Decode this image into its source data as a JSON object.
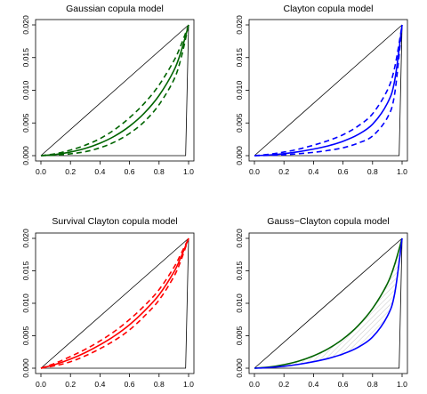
{
  "chart_data": [
    {
      "type": "line",
      "title": "Gaussian copula model",
      "xlabel": "",
      "ylabel": "",
      "xlim": [
        0,
        1
      ],
      "ylim": [
        0,
        0.02
      ],
      "x_ticks": [
        "0.0",
        "0.2",
        "0.4",
        "0.6",
        "0.8",
        "1.0"
      ],
      "y_ticks": [
        "0.000",
        "0.005",
        "0.010",
        "0.015",
        "0.020"
      ],
      "grid": false,
      "x": [
        0,
        0.1,
        0.2,
        0.3,
        0.4,
        0.5,
        0.6,
        0.7,
        0.8,
        0.9,
        0.95,
        1.0
      ],
      "series": [
        {
          "color": "#000000",
          "style": "solid",
          "role": "diagonal",
          "x": [
            0,
            1
          ],
          "values": [
            0,
            0.02
          ]
        },
        {
          "color": "#000000",
          "style": "solid",
          "role": "lower-bound",
          "x": [
            0,
            0.98,
            1
          ],
          "values": [
            0,
            0,
            0.02
          ]
        },
        {
          "color": "#006400",
          "style": "solid",
          "values": [
            0,
            0.00018,
            0.00055,
            0.0011,
            0.0019,
            0.003,
            0.0045,
            0.0065,
            0.0092,
            0.013,
            0.016,
            0.02
          ]
        },
        {
          "color": "#006400",
          "style": "dashed",
          "values": [
            0,
            0.0003,
            0.00085,
            0.0016,
            0.0026,
            0.004,
            0.0058,
            0.008,
            0.0108,
            0.0145,
            0.017,
            0.02
          ]
        },
        {
          "color": "#006400",
          "style": "dashed",
          "values": [
            0,
            8e-05,
            0.00028,
            0.0006,
            0.0012,
            0.0021,
            0.0034,
            0.0052,
            0.0078,
            0.0116,
            0.015,
            0.02
          ]
        }
      ]
    },
    {
      "type": "line",
      "title": "Clayton copula model",
      "xlabel": "",
      "ylabel": "",
      "xlim": [
        0,
        1
      ],
      "ylim": [
        0,
        0.02
      ],
      "x_ticks": [
        "0.0",
        "0.2",
        "0.4",
        "0.6",
        "0.8",
        "1.0"
      ],
      "y_ticks": [
        "0.000",
        "0.005",
        "0.010",
        "0.015",
        "0.020"
      ],
      "grid": false,
      "x": [
        0,
        0.1,
        0.2,
        0.3,
        0.4,
        0.5,
        0.6,
        0.7,
        0.8,
        0.9,
        0.95,
        1.0
      ],
      "series": [
        {
          "color": "#000000",
          "style": "solid",
          "role": "diagonal",
          "x": [
            0,
            1
          ],
          "values": [
            0,
            0.02
          ]
        },
        {
          "color": "#000000",
          "style": "solid",
          "role": "lower-bound",
          "x": [
            0,
            0.98,
            1
          ],
          "values": [
            0,
            0,
            0.02
          ]
        },
        {
          "color": "#0000ff",
          "style": "solid",
          "values": [
            0,
            0.0001,
            0.0003,
            0.0006,
            0.001,
            0.0015,
            0.0022,
            0.0032,
            0.0048,
            0.008,
            0.0115,
            0.02
          ]
        },
        {
          "color": "#0000ff",
          "style": "dashed",
          "values": [
            0,
            0.0002,
            0.00055,
            0.001,
            0.0016,
            0.0023,
            0.0032,
            0.0045,
            0.0064,
            0.01,
            0.0135,
            0.02
          ]
        },
        {
          "color": "#0000ff",
          "style": "dashed",
          "values": [
            0,
            4e-05,
            0.00012,
            0.0003,
            0.0005,
            0.0008,
            0.0012,
            0.0019,
            0.003,
            0.0058,
            0.0095,
            0.02
          ]
        }
      ]
    },
    {
      "type": "line",
      "title": "Survival Clayton copula model",
      "xlabel": "",
      "ylabel": "",
      "xlim": [
        0,
        1
      ],
      "ylim": [
        0,
        0.02
      ],
      "x_ticks": [
        "0.0",
        "0.2",
        "0.4",
        "0.6",
        "0.8",
        "1.0"
      ],
      "y_ticks": [
        "0.000",
        "0.005",
        "0.010",
        "0.015",
        "0.020"
      ],
      "grid": false,
      "x": [
        0,
        0.1,
        0.2,
        0.3,
        0.4,
        0.5,
        0.6,
        0.7,
        0.8,
        0.9,
        0.95,
        1.0
      ],
      "series": [
        {
          "color": "#000000",
          "style": "solid",
          "role": "diagonal",
          "x": [
            0,
            1
          ],
          "values": [
            0,
            0.02
          ]
        },
        {
          "color": "#000000",
          "style": "solid",
          "role": "lower-bound",
          "x": [
            0,
            0.98,
            1
          ],
          "values": [
            0,
            0,
            0.02
          ]
        },
        {
          "color": "#ff0000",
          "style": "solid",
          "values": [
            0,
            0.0006,
            0.0014,
            0.0024,
            0.0036,
            0.005,
            0.0067,
            0.0088,
            0.0113,
            0.0148,
            0.0172,
            0.02
          ]
        },
        {
          "color": "#ff0000",
          "style": "dashed",
          "values": [
            0,
            0.0008,
            0.0018,
            0.0029,
            0.0042,
            0.0057,
            0.0075,
            0.0096,
            0.0121,
            0.0155,
            0.0177,
            0.02
          ]
        },
        {
          "color": "#ff0000",
          "style": "dashed",
          "values": [
            0,
            0.0004,
            0.001,
            0.0019,
            0.003,
            0.0043,
            0.0059,
            0.008,
            0.0105,
            0.0141,
            0.0167,
            0.02
          ]
        }
      ]
    },
    {
      "type": "line",
      "title": "Gauss−Clayton copula model",
      "xlabel": "",
      "ylabel": "",
      "xlim": [
        0,
        1
      ],
      "ylim": [
        0,
        0.02
      ],
      "x_ticks": [
        "0.0",
        "0.2",
        "0.4",
        "0.6",
        "0.8",
        "1.0"
      ],
      "y_ticks": [
        "0.000",
        "0.005",
        "0.010",
        "0.015",
        "0.020"
      ],
      "grid": false,
      "shaded_between": [
        2,
        3
      ],
      "x": [
        0,
        0.1,
        0.2,
        0.3,
        0.4,
        0.5,
        0.6,
        0.7,
        0.8,
        0.9,
        0.95,
        1.0
      ],
      "series": [
        {
          "color": "#000000",
          "style": "solid",
          "role": "diagonal",
          "x": [
            0,
            1
          ],
          "values": [
            0,
            0.02
          ]
        },
        {
          "color": "#000000",
          "style": "solid",
          "role": "lower-bound",
          "x": [
            0,
            0.98,
            1
          ],
          "values": [
            0,
            0,
            0.02
          ]
        },
        {
          "color": "#006400",
          "style": "solid",
          "values": [
            0,
            0.00018,
            0.00055,
            0.0011,
            0.0019,
            0.003,
            0.0045,
            0.0065,
            0.0092,
            0.013,
            0.016,
            0.02
          ]
        },
        {
          "color": "#0000ff",
          "style": "solid",
          "values": [
            0,
            0.0001,
            0.0003,
            0.0006,
            0.001,
            0.0015,
            0.0022,
            0.0032,
            0.0048,
            0.008,
            0.0115,
            0.02
          ]
        }
      ]
    }
  ]
}
